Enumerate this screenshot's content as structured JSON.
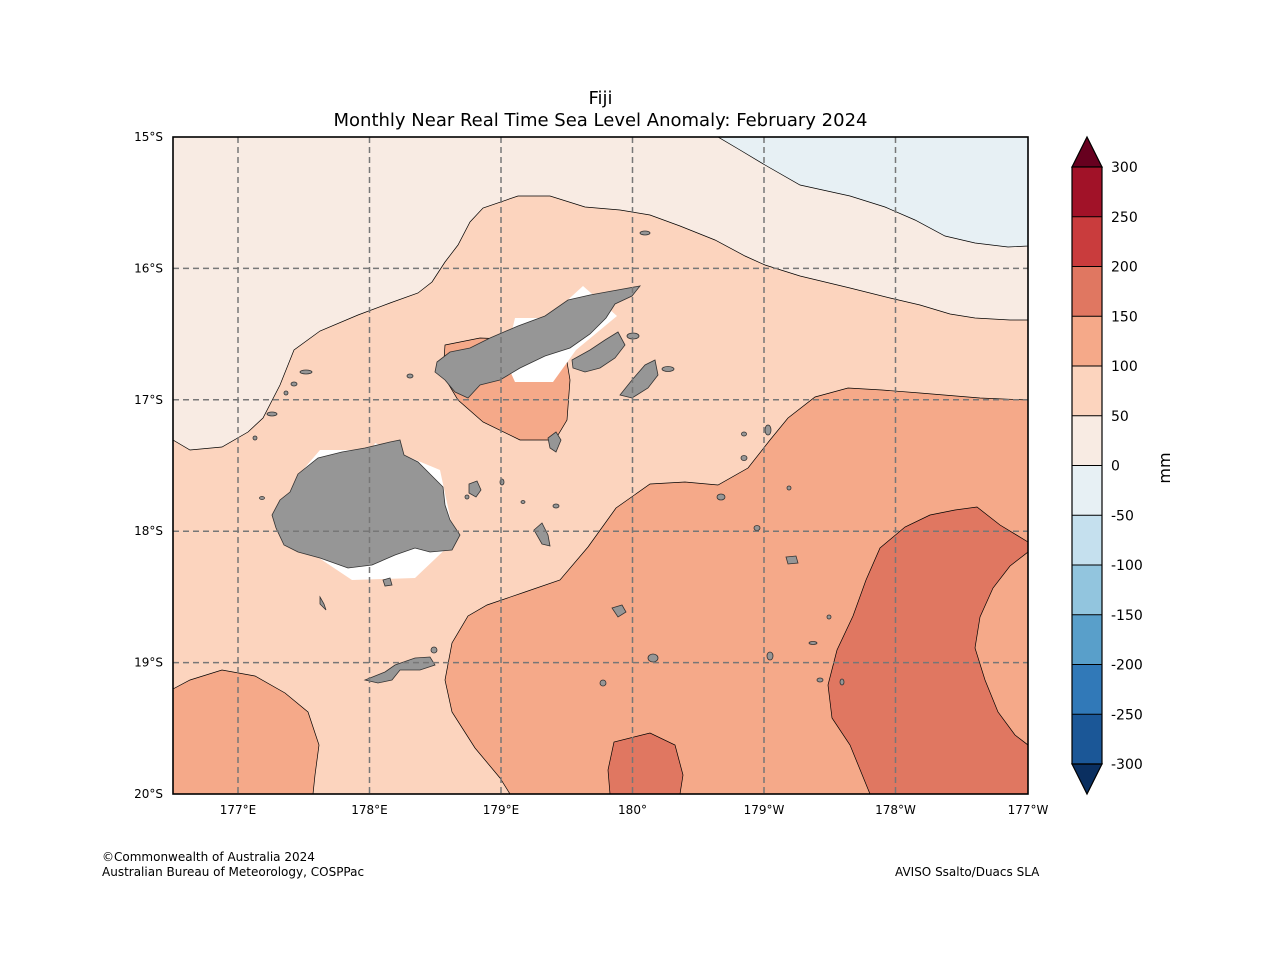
{
  "title": {
    "line1": "Fiji",
    "line2": "Monthly Near Real Time Sea Level Anomaly: February 2024"
  },
  "map": {
    "lat_labels": [
      "15°S",
      "16°S",
      "17°S",
      "18°S",
      "19°S",
      "20°S"
    ],
    "lon_labels": [
      "177°E",
      "178°E",
      "179°E",
      "180°",
      "179°W",
      "178°W",
      "177°W"
    ],
    "land_color": "#969696",
    "grid": true
  },
  "colorbar": {
    "unit": "mm",
    "ticks": [
      "300",
      "250",
      "200",
      "150",
      "100",
      "50",
      "0",
      "-50",
      "-100",
      "-150",
      "-200",
      "-250",
      "-300"
    ],
    "colors": [
      "#a11228",
      "#c93c3d",
      "#e07761",
      "#f5a989",
      "#fcd4be",
      "#f8ebe3",
      "#e7f0f4",
      "#c5e0ee",
      "#92c5de",
      "#599fca",
      "#3179b8",
      "#1b5797"
    ],
    "over_color": "#67001f",
    "under_color": "#0a2f60"
  },
  "credits": {
    "left1": "©Commonwealth of Australia 2024",
    "left2": "Australian Bureau of Meteorology, COSPPac",
    "right": "AVISO Ssalto/Duacs SLA"
  }
}
